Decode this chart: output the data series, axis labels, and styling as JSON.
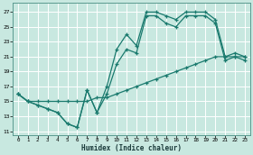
{
  "xlabel": "Humidex (Indice chaleur)",
  "bg_color": "#c8e8e0",
  "grid_color": "#ffffff",
  "line_color": "#1a7a6e",
  "xlim": [
    -0.5,
    23.5
  ],
  "ylim": [
    10.5,
    28.2
  ],
  "xticks": [
    0,
    1,
    2,
    3,
    4,
    5,
    6,
    7,
    8,
    9,
    10,
    11,
    12,
    13,
    14,
    15,
    16,
    17,
    18,
    19,
    20,
    21,
    22,
    23
  ],
  "yticks": [
    11,
    13,
    15,
    17,
    19,
    21,
    23,
    25,
    27
  ],
  "line1_x": [
    0,
    1,
    2,
    3,
    4,
    5,
    6,
    7,
    8,
    9,
    10,
    11,
    12,
    13,
    14,
    15,
    16,
    17,
    18,
    19,
    20,
    21,
    22,
    23
  ],
  "line1_y": [
    16,
    15,
    14.5,
    14,
    13.5,
    12,
    11.5,
    16.5,
    13.5,
    17,
    22,
    24,
    22.5,
    27,
    27,
    26.5,
    26,
    27,
    27,
    27,
    26,
    21,
    21.5,
    21
  ],
  "line2_x": [
    0,
    1,
    2,
    3,
    4,
    5,
    6,
    7,
    8,
    9,
    10,
    11,
    12,
    13,
    14,
    15,
    16,
    17,
    18,
    19,
    20,
    21,
    22,
    23
  ],
  "line2_y": [
    16,
    15,
    14.5,
    14,
    13.5,
    12,
    11.5,
    16.5,
    13.5,
    16,
    20,
    22,
    21.5,
    26.5,
    26.5,
    25.5,
    25,
    26.5,
    26.5,
    26.5,
    25.5,
    20.5,
    21,
    20.5
  ],
  "line3_x": [
    0,
    1,
    2,
    3,
    4,
    5,
    6,
    7,
    8,
    9,
    10,
    11,
    12,
    13,
    14,
    15,
    16,
    17,
    18,
    19,
    20,
    21,
    22,
    23
  ],
  "line3_y": [
    16,
    15,
    15,
    15,
    15,
    15,
    15,
    15,
    15.5,
    15.5,
    16,
    16.5,
    17,
    17.5,
    18,
    18.5,
    19,
    19.5,
    20,
    20.5,
    21,
    21,
    21,
    21
  ]
}
